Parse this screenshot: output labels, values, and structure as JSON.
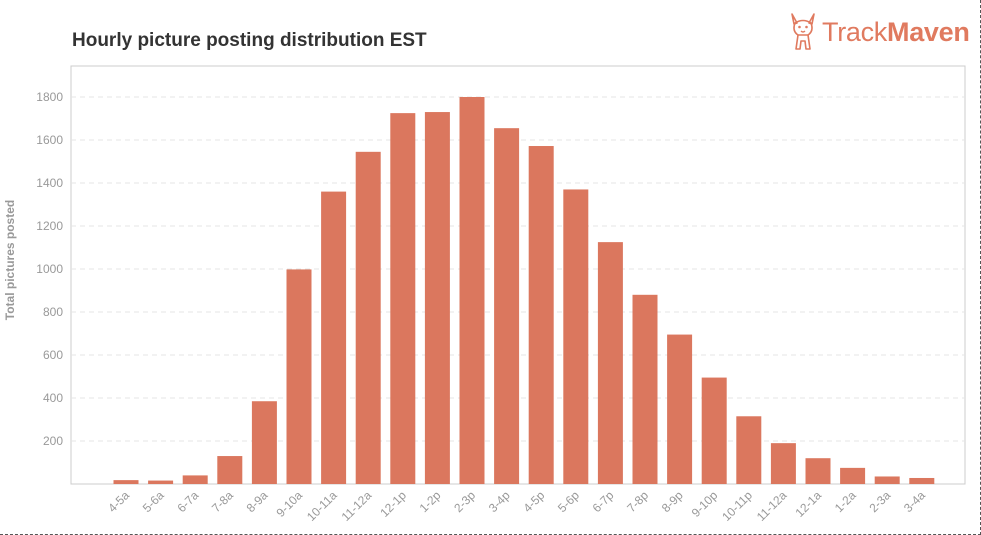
{
  "title": "Hourly picture posting distribution EST",
  "brand": {
    "prefix": "Track",
    "suffix": "Maven",
    "icon": "corgi-dog-logo-icon",
    "color": "#e07a5f"
  },
  "chart_data": {
    "type": "bar",
    "title": "Hourly picture posting distribution EST",
    "xlabel": "",
    "ylabel": "Total pictures posted",
    "ylim": [
      0,
      1800
    ],
    "yticks": [
      200,
      400,
      600,
      800,
      1000,
      1200,
      1400,
      1600,
      1800
    ],
    "grid": true,
    "bar_color": "#db775e",
    "categories": [
      "4-5a",
      "5-6a",
      "6-7a",
      "7-8a",
      "8-9a",
      "9-10a",
      "10-11a",
      "11-12a",
      "12-1p",
      "1-2p",
      "2-3p",
      "3-4p",
      "4-5p",
      "5-6p",
      "6-7p",
      "7-8p",
      "8-9p",
      "9-10p",
      "10-11p",
      "11-12a",
      "12-1a",
      "1-2a",
      "2-3a",
      "3-4a"
    ],
    "values": [
      18,
      16,
      40,
      130,
      385,
      998,
      1360,
      1545,
      1725,
      1730,
      1800,
      1655,
      1572,
      1370,
      1125,
      880,
      695,
      495,
      315,
      190,
      120,
      75,
      35,
      28
    ]
  }
}
